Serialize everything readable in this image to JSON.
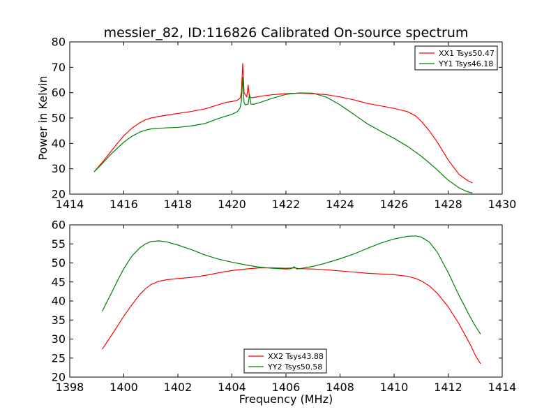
{
  "figure": {
    "title": "messier_82, ID:116826 Calibrated On-source spectrum"
  },
  "chart_data": [
    {
      "type": "line",
      "title": "messier_82, ID:116826 Calibrated On-source spectrum",
      "xlabel": "",
      "ylabel": "Power in Kelvin",
      "xlim": [
        1414,
        1430
      ],
      "ylim": [
        20,
        80
      ],
      "xticks": [
        1414,
        1416,
        1418,
        1420,
        1422,
        1424,
        1426,
        1428,
        1430
      ],
      "yticks": [
        20,
        30,
        40,
        50,
        60,
        70,
        80
      ],
      "grid": false,
      "legend": "top-right",
      "series": [
        {
          "name": "XX1 Tsys50.47",
          "color": "#ff0000",
          "x": [
            1414.9,
            1415.2,
            1415.5,
            1415.8,
            1416.0,
            1416.3,
            1416.6,
            1416.8,
            1417.0,
            1417.5,
            1418.0,
            1418.5,
            1419.0,
            1419.5,
            1419.8,
            1420.0,
            1420.2,
            1420.3,
            1420.35,
            1420.4,
            1420.45,
            1420.55,
            1420.6,
            1420.65,
            1420.75,
            1421.0,
            1421.5,
            1422.0,
            1422.5,
            1423.0,
            1423.5,
            1424.0,
            1424.5,
            1425.0,
            1425.5,
            1426.0,
            1426.5,
            1426.8,
            1427.0,
            1427.3,
            1427.6,
            1428.0,
            1428.4,
            1428.7,
            1428.9
          ],
          "y": [
            28.8,
            32.5,
            36.5,
            40.5,
            43.0,
            46.0,
            48.2,
            49.3,
            50.0,
            51.0,
            51.8,
            52.6,
            53.6,
            55.2,
            56.2,
            56.5,
            57.0,
            57.8,
            60.0,
            71.5,
            60.0,
            58.3,
            63.0,
            58.3,
            58.0,
            58.5,
            59.2,
            59.6,
            59.8,
            59.6,
            59.2,
            58.3,
            57.2,
            55.8,
            54.8,
            53.8,
            52.5,
            50.8,
            48.8,
            45.0,
            40.5,
            33.5,
            27.8,
            25.5,
            24.4
          ]
        },
        {
          "name": "YY1 Tsys46.18",
          "color": "#008000",
          "x": [
            1414.9,
            1415.2,
            1415.5,
            1415.8,
            1416.0,
            1416.3,
            1416.6,
            1416.8,
            1417.0,
            1417.5,
            1418.0,
            1418.5,
            1419.0,
            1419.5,
            1419.8,
            1420.0,
            1420.2,
            1420.3,
            1420.35,
            1420.4,
            1420.45,
            1420.5,
            1420.6,
            1420.65,
            1420.7,
            1420.8,
            1421.0,
            1421.5,
            1422.0,
            1422.5,
            1423.0,
            1423.5,
            1424.0,
            1424.5,
            1425.0,
            1425.5,
            1426.0,
            1426.5,
            1427.0,
            1427.5,
            1428.0,
            1428.4,
            1428.7,
            1428.9
          ],
          "y": [
            28.8,
            32.0,
            35.5,
            38.5,
            40.5,
            42.8,
            44.5,
            45.2,
            45.7,
            46.1,
            46.3,
            46.9,
            47.8,
            49.8,
            50.8,
            51.5,
            52.5,
            54.0,
            56.5,
            66.0,
            56.0,
            55.2,
            55.5,
            59.3,
            55.5,
            55.4,
            56.0,
            57.8,
            59.3,
            59.9,
            59.8,
            58.2,
            55.2,
            51.5,
            47.8,
            44.8,
            42.0,
            38.8,
            35.0,
            30.5,
            25.5,
            22.5,
            21.0,
            20.4
          ]
        }
      ]
    },
    {
      "type": "line",
      "title": "",
      "xlabel": "Frequency (MHz)",
      "ylabel": "",
      "xlim": [
        1398,
        1414
      ],
      "ylim": [
        20,
        60
      ],
      "xticks": [
        1398,
        1400,
        1402,
        1404,
        1406,
        1408,
        1410,
        1412,
        1414
      ],
      "yticks": [
        20,
        25,
        30,
        35,
        40,
        45,
        50,
        55,
        60
      ],
      "grid": false,
      "legend": "bottom-center",
      "series": [
        {
          "name": "XX2 Tsys43.88",
          "color": "#ff0000",
          "x": [
            1399.2,
            1399.5,
            1399.8,
            1400.0,
            1400.3,
            1400.6,
            1400.8,
            1401.0,
            1401.3,
            1401.6,
            1402.0,
            1402.5,
            1403.0,
            1403.5,
            1404.0,
            1404.5,
            1405.0,
            1405.5,
            1406.0,
            1406.3,
            1406.5,
            1407.0,
            1407.5,
            1408.0,
            1408.5,
            1409.0,
            1409.5,
            1410.0,
            1410.5,
            1410.8,
            1411.0,
            1411.3,
            1411.6,
            1412.0,
            1412.4,
            1412.8,
            1413.0,
            1413.2
          ],
          "y": [
            27.3,
            30.5,
            33.8,
            36.0,
            39.0,
            41.8,
            43.2,
            44.3,
            45.2,
            45.6,
            45.9,
            46.2,
            46.7,
            47.4,
            48.0,
            48.4,
            48.7,
            48.7,
            48.6,
            48.7,
            48.5,
            48.4,
            48.2,
            47.9,
            47.6,
            47.3,
            47.1,
            46.9,
            46.5,
            45.9,
            45.3,
            44.0,
            42.0,
            38.5,
            34.0,
            28.8,
            25.8,
            23.5
          ]
        },
        {
          "name": "YY2 Tsys50.58",
          "color": "#008000",
          "x": [
            1399.2,
            1399.5,
            1399.8,
            1400.0,
            1400.3,
            1400.6,
            1400.8,
            1401.0,
            1401.3,
            1401.6,
            1402.0,
            1402.5,
            1403.0,
            1403.5,
            1404.0,
            1404.5,
            1405.0,
            1405.5,
            1406.0,
            1406.2,
            1406.3,
            1406.4,
            1406.6,
            1407.0,
            1407.5,
            1408.0,
            1408.5,
            1409.0,
            1409.5,
            1410.0,
            1410.5,
            1410.8,
            1411.0,
            1411.3,
            1411.6,
            1412.0,
            1412.4,
            1412.8,
            1413.0,
            1413.2
          ],
          "y": [
            37.3,
            41.5,
            45.8,
            48.5,
            51.8,
            54.0,
            55.0,
            55.6,
            55.8,
            55.5,
            54.7,
            53.5,
            52.1,
            51.0,
            50.2,
            49.5,
            48.9,
            48.6,
            48.4,
            48.5,
            49.0,
            48.4,
            48.6,
            49.1,
            50.0,
            51.1,
            52.3,
            53.8,
            55.2,
            56.3,
            57.0,
            57.1,
            56.8,
            55.5,
            52.8,
            47.5,
            41.5,
            36.0,
            33.5,
            31.3
          ]
        }
      ]
    }
  ]
}
